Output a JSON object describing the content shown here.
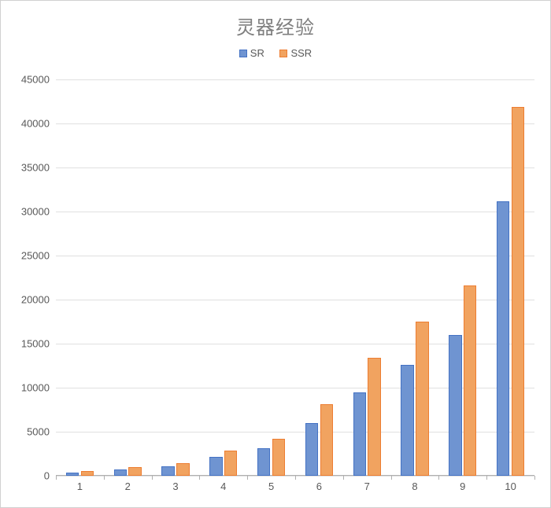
{
  "chart": {
    "type": "bar",
    "title": "灵器经验",
    "title_fontsize": 24,
    "title_color": "#7f7f7f",
    "background_color": "#ffffff",
    "border_color": "#d0d0d0",
    "grid_color": "#e0e0e0",
    "axis_color": "#b0b0b0",
    "label_color": "#595959",
    "label_fontsize": 13,
    "categories": [
      "1",
      "2",
      "3",
      "4",
      "5",
      "6",
      "7",
      "8",
      "9",
      "10"
    ],
    "series": [
      {
        "name": "SR",
        "color_fill": "#6f94d1",
        "color_border": "#4472c4",
        "values": [
          400,
          700,
          1050,
          2100,
          3100,
          6000,
          9500,
          12600,
          16000,
          31200
        ]
      },
      {
        "name": "SSR",
        "color_fill": "#f1a360",
        "color_border": "#ed7d31",
        "values": [
          500,
          950,
          1450,
          2850,
          4200,
          8150,
          13350,
          17500,
          21600,
          41850
        ]
      }
    ],
    "ylim": [
      0,
      45000
    ],
    "ytick_step": 5000,
    "bar_group_width": 0.58,
    "bar_gap_inner": 0.04
  }
}
